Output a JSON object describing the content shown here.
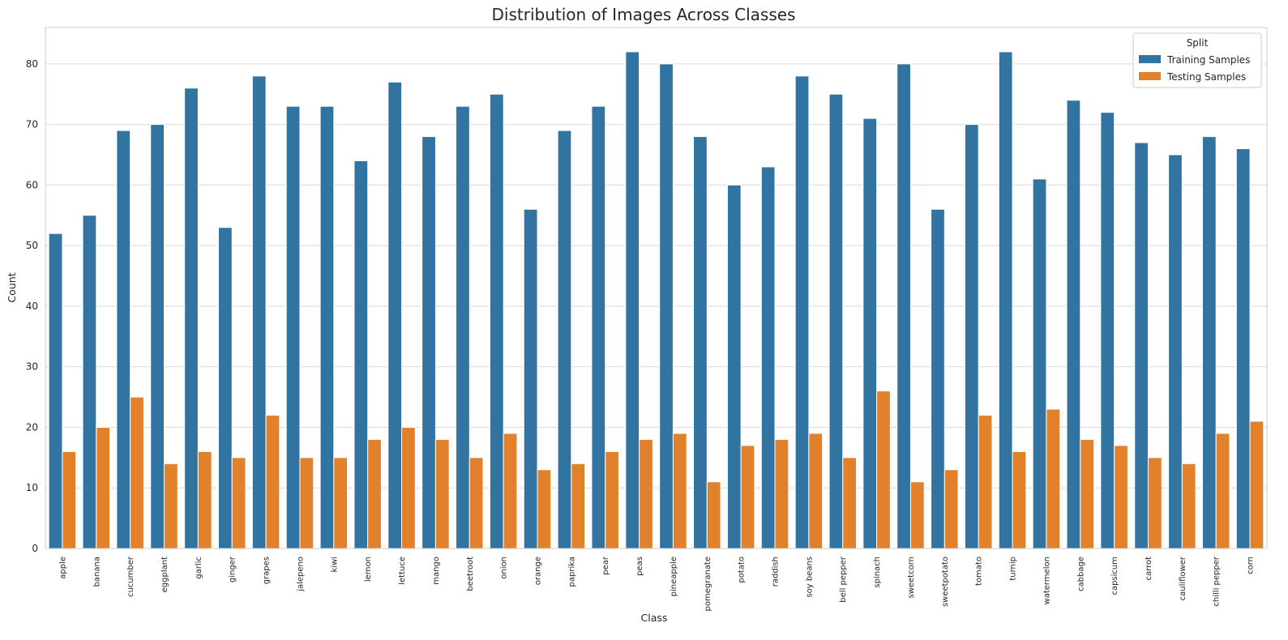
{
  "chart_data": {
    "type": "bar",
    "title": "Distribution of Images Across Classes",
    "xlabel": "Class",
    "ylabel": "Count",
    "ylim": [
      0,
      86
    ],
    "yticks": [
      0,
      10,
      20,
      30,
      40,
      50,
      60,
      70,
      80
    ],
    "grid": "horizontal",
    "legend": {
      "title": "Split",
      "position": "top-right"
    },
    "categories": [
      "apple",
      "banana",
      "cucumber",
      "eggplant",
      "garlic",
      "ginger",
      "grapes",
      "jalepeno",
      "kiwi",
      "lemon",
      "lettuce",
      "mango",
      "beetroot",
      "onion",
      "orange",
      "paprika",
      "pear",
      "peas",
      "pineapple",
      "pomegranate",
      "potato",
      "raddish",
      "soy beans",
      "bell pepper",
      "spinach",
      "sweetcorn",
      "sweetpotato",
      "tomato",
      "turnip",
      "watermelon",
      "cabbage",
      "capsicum",
      "carrot",
      "cauliflower",
      "chilli pepper",
      "corn"
    ],
    "series": [
      {
        "name": "Training Samples",
        "color": "#3274a1",
        "values": [
          52,
          55,
          69,
          70,
          76,
          53,
          78,
          73,
          73,
          64,
          77,
          68,
          73,
          75,
          56,
          69,
          73,
          82,
          80,
          68,
          60,
          63,
          78,
          75,
          71,
          80,
          56,
          70,
          82,
          61,
          74,
          72,
          67,
          65,
          68,
          66
        ]
      },
      {
        "name": "Testing Samples",
        "color": "#e1812c",
        "values": [
          16,
          20,
          25,
          14,
          16,
          15,
          22,
          15,
          15,
          18,
          20,
          18,
          15,
          19,
          13,
          14,
          16,
          18,
          19,
          11,
          17,
          18,
          19,
          15,
          26,
          11,
          13,
          22,
          16,
          23,
          18,
          17,
          15,
          14,
          19,
          21
        ]
      }
    ]
  }
}
